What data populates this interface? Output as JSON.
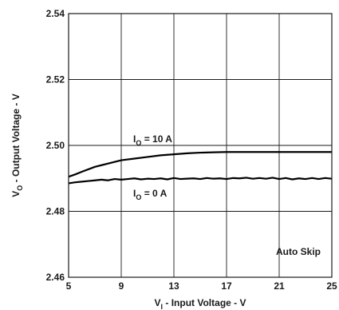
{
  "chart_data": {
    "type": "line",
    "title": "",
    "xlabel": {
      "main": "V",
      "sub": "I",
      "rest": " - Input Voltage - V"
    },
    "ylabel": {
      "main": "V",
      "sub": "O",
      "rest": " - Output Voltage - V"
    },
    "xlim": [
      5,
      25
    ],
    "ylim": [
      2.46,
      2.54
    ],
    "x_ticks": [
      "5",
      "9",
      "13",
      "17",
      "21",
      "25"
    ],
    "y_ticks": [
      "2.46",
      "2.48",
      "2.50",
      "2.52",
      "2.54"
    ],
    "grid": true,
    "annotation": "Auto Skip",
    "series": [
      {
        "name": "I_O = 10 A",
        "label": {
          "main": "I",
          "sub": "O",
          "rest": " = 10 A"
        },
        "x": [
          5,
          5.5,
          6,
          7,
          8,
          9,
          10,
          11,
          12,
          13,
          14,
          15,
          16,
          17,
          18,
          19,
          20,
          21,
          22,
          23,
          24,
          25
        ],
        "y": [
          2.4905,
          2.4912,
          2.492,
          2.4935,
          2.4945,
          2.4955,
          2.496,
          2.4965,
          2.497,
          2.4973,
          2.4976,
          2.4978,
          2.4979,
          2.498,
          2.498,
          2.498,
          2.498,
          2.498,
          2.498,
          2.498,
          2.498,
          2.498
        ]
      },
      {
        "name": "I_O = 0 A",
        "label": {
          "main": "I",
          "sub": "O",
          "rest": " = 0 A"
        },
        "x": [
          5,
          5.5,
          6,
          6.5,
          7,
          7.5,
          8,
          8.5,
          9,
          9.5,
          10,
          10.5,
          11,
          11.5,
          12,
          12.5,
          13,
          13.5,
          14,
          14.5,
          15,
          15.5,
          16,
          16.5,
          17,
          17.5,
          18,
          18.5,
          19,
          19.5,
          20,
          20.5,
          21,
          21.5,
          22,
          22.5,
          23,
          23.5,
          24,
          24.5,
          25
        ],
        "y": [
          2.4885,
          2.4888,
          2.489,
          2.4892,
          2.4894,
          2.4896,
          2.4894,
          2.4898,
          2.4896,
          2.4898,
          2.49,
          2.4897,
          2.4899,
          2.4898,
          2.49,
          2.4897,
          2.4901,
          2.4898,
          2.4899,
          2.49,
          2.4898,
          2.4901,
          2.4899,
          2.49,
          2.4898,
          2.4901,
          2.49,
          2.4902,
          2.4899,
          2.4901,
          2.4899,
          2.4902,
          2.4898,
          2.4901,
          2.4897,
          2.49,
          2.4898,
          2.4901,
          2.4898,
          2.4901,
          2.4899
        ]
      }
    ]
  }
}
